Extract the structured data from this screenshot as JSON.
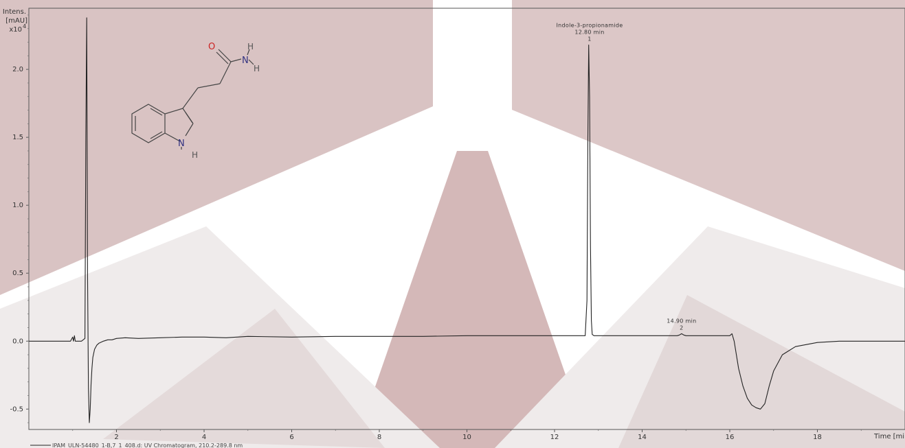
{
  "chart_data": {
    "type": "line",
    "ylabel_lines": [
      "Intens.",
      "[mAU]",
      "x10"
    ],
    "ylabel_exponent": "4",
    "xlabel": "Time [min]",
    "xlim": [
      0.0,
      20.0
    ],
    "ylim": [
      -0.65,
      2.45
    ],
    "xticks": [
      {
        "value": 2,
        "label": "2"
      },
      {
        "value": 4,
        "label": "4"
      },
      {
        "value": 6,
        "label": "6"
      },
      {
        "value": 8,
        "label": "8"
      },
      {
        "value": 10,
        "label": "10"
      },
      {
        "value": 12,
        "label": "12"
      },
      {
        "value": 14,
        "label": "14"
      },
      {
        "value": 16,
        "label": "16"
      },
      {
        "value": 18,
        "label": "18"
      }
    ],
    "yticks": [
      {
        "value": -0.5,
        "label": "-0.5"
      },
      {
        "value": 0.0,
        "label": "0.0"
      },
      {
        "value": 0.5,
        "label": "0.5"
      },
      {
        "value": 1.0,
        "label": "1.0"
      },
      {
        "value": 1.5,
        "label": "1.5"
      },
      {
        "value": 2.0,
        "label": "2.0"
      }
    ],
    "series": [
      {
        "name": "IPAM_ULN-54480_1-B,7_1_408.d: UV Chromatogram, 210.2-289.8 nm",
        "color": "#222222",
        "x": [
          0.0,
          0.95,
          1.0,
          1.02,
          1.04,
          1.06,
          1.1,
          1.2,
          1.28,
          1.3,
          1.32,
          1.34,
          1.36,
          1.38,
          1.4,
          1.42,
          1.44,
          1.46,
          1.5,
          1.55,
          1.6,
          1.7,
          1.8,
          1.9,
          2.0,
          2.2,
          2.5,
          3.0,
          3.5,
          4.0,
          4.5,
          5.0,
          6.0,
          7.0,
          8.0,
          9.0,
          10.0,
          11.0,
          12.0,
          12.6,
          12.7,
          12.74,
          12.76,
          12.78,
          12.8,
          12.82,
          12.84,
          12.86,
          12.9,
          13.0,
          14.0,
          14.8,
          14.85,
          14.9,
          14.95,
          15.0,
          15.5,
          16.0,
          16.05,
          16.1,
          16.2,
          16.3,
          16.4,
          16.5,
          16.6,
          16.7,
          16.8,
          16.9,
          17.0,
          17.2,
          17.5,
          18.0,
          18.5,
          19.0,
          20.0
        ],
        "y": [
          0.0,
          0.0,
          0.03,
          0.0,
          0.04,
          0.0,
          0.0,
          0.0,
          0.02,
          1.5,
          2.38,
          0.5,
          -0.35,
          -0.6,
          -0.5,
          -0.32,
          -0.2,
          -0.12,
          -0.06,
          -0.03,
          -0.015,
          0.0,
          0.01,
          0.01,
          0.02,
          0.025,
          0.02,
          0.025,
          0.03,
          0.03,
          0.025,
          0.035,
          0.03,
          0.035,
          0.035,
          0.035,
          0.04,
          0.04,
          0.04,
          0.04,
          0.04,
          0.3,
          1.5,
          2.18,
          1.8,
          0.7,
          0.15,
          0.05,
          0.04,
          0.04,
          0.04,
          0.04,
          0.045,
          0.055,
          0.045,
          0.04,
          0.04,
          0.04,
          0.055,
          0.0,
          -0.2,
          -0.33,
          -0.42,
          -0.47,
          -0.49,
          -0.5,
          -0.46,
          -0.33,
          -0.22,
          -0.1,
          -0.04,
          -0.01,
          0.0,
          0.0,
          0.0
        ]
      }
    ],
    "annotations": [
      {
        "x": 12.8,
        "y": 2.18,
        "lines": [
          "Indole-3-propionamide",
          "12.80 min",
          "1"
        ]
      },
      {
        "x": 14.9,
        "y": 0.055,
        "lines": [
          "14.90 min",
          "2"
        ]
      }
    ],
    "legend_position": "bottom-left",
    "grid": false
  },
  "structure": {
    "atom_labels": {
      "oxygen": "O",
      "nitrogen_amide": "N",
      "hydrogen_amide_1": "H",
      "hydrogen_amide_2": "H",
      "nitrogen_ring": "N",
      "hydrogen_ring": "H"
    },
    "colors": {
      "oxygen": "#cc2222",
      "nitrogen": "#303080",
      "hydrogen": "#555555",
      "bond": "#444444"
    }
  },
  "background_colors": {
    "dark_wedge": "#d8c0c0",
    "light_wedge": "#f1eeee",
    "mid_wedge": "#e6dede"
  }
}
